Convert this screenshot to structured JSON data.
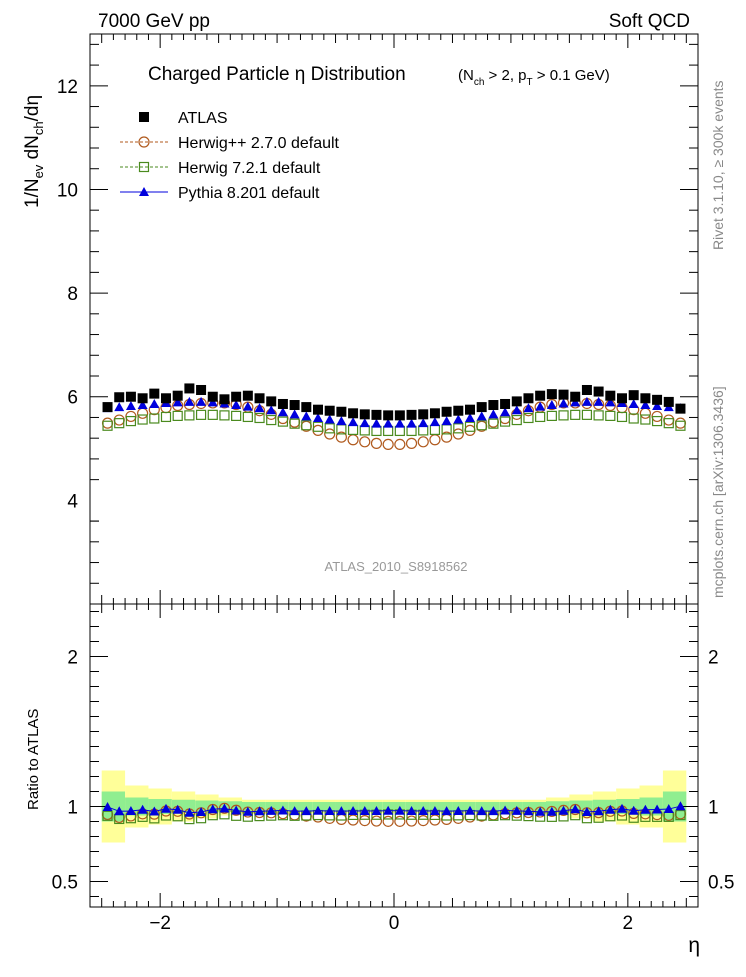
{
  "header": {
    "left": "7000 GeV pp",
    "right": "Soft QCD"
  },
  "side_labels": {
    "rivet": "Rivet 3.1.10, ≥ 300k events",
    "mcplots": "mcplots.cern.ch [arXiv:1306.3436]"
  },
  "chart_data": [
    {
      "type": "scatter",
      "title": "Charged Particle  η Distribution",
      "title_cuts": "(N_ch > 2, p_T > 0.1 GeV)",
      "ylabel": "1/N_ev dN_ch/dη",
      "xlabel": "η",
      "watermark": "ATLAS_2010_S8918562",
      "xlim": [
        -2.6,
        2.6
      ],
      "ylim": [
        2.0,
        13.0
      ],
      "xticks": [
        -2,
        0,
        2
      ],
      "yticks": [
        4,
        6,
        8,
        10,
        12
      ],
      "legend_position": "top-left",
      "x": [
        -2.45,
        -2.35,
        -2.25,
        -2.15,
        -2.05,
        -1.95,
        -1.85,
        -1.75,
        -1.65,
        -1.55,
        -1.45,
        -1.35,
        -1.25,
        -1.15,
        -1.05,
        -0.95,
        -0.85,
        -0.75,
        -0.65,
        -0.55,
        -0.45,
        -0.35,
        -0.25,
        -0.15,
        -0.05,
        0.05,
        0.15,
        0.25,
        0.35,
        0.45,
        0.55,
        0.65,
        0.75,
        0.85,
        0.95,
        1.05,
        1.15,
        1.25,
        1.35,
        1.45,
        1.55,
        1.65,
        1.75,
        1.85,
        1.95,
        2.05,
        2.15,
        2.25,
        2.35,
        2.45
      ],
      "series": [
        {
          "name": "ATLAS",
          "marker": "filled-square",
          "color": "#000000",
          "values": [
            5.8,
            5.99,
            6.0,
            5.97,
            6.06,
            5.97,
            6.02,
            6.16,
            6.13,
            6.0,
            5.95,
            6.0,
            6.02,
            5.97,
            5.91,
            5.86,
            5.84,
            5.8,
            5.75,
            5.73,
            5.71,
            5.68,
            5.66,
            5.65,
            5.64,
            5.64,
            5.65,
            5.66,
            5.68,
            5.71,
            5.73,
            5.75,
            5.8,
            5.84,
            5.86,
            5.91,
            5.97,
            6.02,
            6.05,
            6.04,
            6.0,
            6.13,
            6.1,
            6.02,
            5.97,
            6.03,
            5.97,
            5.94,
            5.9,
            5.77
          ]
        },
        {
          "name": "Herwig++ 2.7.0 default",
          "marker": "open-circle",
          "color": "#b05a1e",
          "values": [
            5.49,
            5.55,
            5.62,
            5.68,
            5.75,
            5.79,
            5.83,
            5.85,
            5.87,
            5.88,
            5.88,
            5.85,
            5.8,
            5.73,
            5.66,
            5.58,
            5.51,
            5.43,
            5.35,
            5.28,
            5.22,
            5.17,
            5.13,
            5.1,
            5.08,
            5.08,
            5.1,
            5.13,
            5.17,
            5.22,
            5.28,
            5.35,
            5.43,
            5.51,
            5.58,
            5.66,
            5.73,
            5.8,
            5.85,
            5.88,
            5.88,
            5.87,
            5.85,
            5.83,
            5.79,
            5.75,
            5.68,
            5.62,
            5.55,
            5.49
          ]
        },
        {
          "name": "Herwig 7.2.1 default",
          "marker": "open-square",
          "color": "#4a8a1e",
          "values": [
            5.44,
            5.49,
            5.53,
            5.56,
            5.58,
            5.61,
            5.63,
            5.64,
            5.65,
            5.65,
            5.64,
            5.63,
            5.61,
            5.59,
            5.55,
            5.52,
            5.48,
            5.45,
            5.42,
            5.39,
            5.37,
            5.36,
            5.35,
            5.34,
            5.34,
            5.34,
            5.34,
            5.35,
            5.36,
            5.37,
            5.39,
            5.42,
            5.45,
            5.48,
            5.52,
            5.55,
            5.59,
            5.61,
            5.63,
            5.64,
            5.65,
            5.65,
            5.64,
            5.63,
            5.61,
            5.58,
            5.56,
            5.53,
            5.49,
            5.44
          ]
        },
        {
          "name": "Pythia 8.201 default",
          "marker": "filled-triangle",
          "color": "#0000dd",
          "values": [
            5.78,
            5.8,
            5.82,
            5.84,
            5.86,
            5.88,
            5.89,
            5.9,
            5.9,
            5.89,
            5.87,
            5.84,
            5.81,
            5.78,
            5.74,
            5.7,
            5.66,
            5.62,
            5.59,
            5.56,
            5.53,
            5.51,
            5.49,
            5.48,
            5.48,
            5.48,
            5.48,
            5.49,
            5.51,
            5.53,
            5.56,
            5.59,
            5.62,
            5.66,
            5.7,
            5.74,
            5.78,
            5.81,
            5.84,
            5.87,
            5.89,
            5.9,
            5.9,
            5.89,
            5.88,
            5.86,
            5.84,
            5.82,
            5.8,
            5.78
          ]
        }
      ]
    },
    {
      "type": "scatter",
      "ylabel": "Ratio to ATLAS",
      "xlabel": "η",
      "xlim": [
        -2.6,
        2.6
      ],
      "ylim": [
        0.33,
        2.35
      ],
      "xticks": [
        -2,
        0,
        2
      ],
      "yticks": [
        0.5,
        1,
        2
      ],
      "ytick_labels": [
        "0.5",
        "1",
        "2"
      ],
      "uncertainty_bands": {
        "stat_color": "#90ee90",
        "total_color": "#ffff99",
        "x_edges": [
          -2.5,
          -2.3,
          -2.1,
          -1.9,
          -1.7,
          -1.5,
          -1.3,
          -1.1,
          -0.9,
          -0.7,
          -0.5,
          -0.3,
          -0.1,
          0.1,
          0.3,
          0.5,
          0.7,
          0.9,
          1.1,
          1.3,
          1.5,
          1.7,
          1.9,
          2.1,
          2.3,
          2.5
        ],
        "stat_half_width": [
          0.1,
          0.06,
          0.05,
          0.045,
          0.04,
          0.035,
          0.03,
          0.03,
          0.03,
          0.03,
          0.03,
          0.03,
          0.03,
          0.03,
          0.03,
          0.03,
          0.03,
          0.03,
          0.03,
          0.035,
          0.04,
          0.045,
          0.05,
          0.06,
          0.1
        ],
        "total_half_width": [
          0.24,
          0.14,
          0.12,
          0.1,
          0.08,
          0.06,
          0.045,
          0.045,
          0.045,
          0.045,
          0.045,
          0.045,
          0.045,
          0.045,
          0.045,
          0.045,
          0.045,
          0.045,
          0.045,
          0.06,
          0.08,
          0.1,
          0.12,
          0.14,
          0.24
        ]
      },
      "series": [
        {
          "name": "Herwig++ 2.7.0 default",
          "values": [
            0.947,
            0.927,
            0.937,
            0.951,
            0.949,
            0.97,
            0.968,
            0.95,
            0.958,
            0.98,
            0.988,
            0.975,
            0.963,
            0.96,
            0.958,
            0.952,
            0.944,
            0.936,
            0.93,
            0.921,
            0.914,
            0.91,
            0.906,
            0.903,
            0.901,
            0.901,
            0.903,
            0.906,
            0.91,
            0.914,
            0.921,
            0.93,
            0.936,
            0.944,
            0.952,
            0.958,
            0.96,
            0.963,
            0.967,
            0.974,
            0.98,
            0.958,
            0.959,
            0.968,
            0.97,
            0.954,
            0.951,
            0.946,
            0.941,
            0.951
          ]
        },
        {
          "name": "Herwig 7.2.1 default",
          "values": [
            0.938,
            0.917,
            0.922,
            0.931,
            0.921,
            0.94,
            0.935,
            0.916,
            0.922,
            0.942,
            0.948,
            0.938,
            0.932,
            0.936,
            0.939,
            0.942,
            0.938,
            0.94,
            0.943,
            0.941,
            0.94,
            0.944,
            0.945,
            0.945,
            0.947,
            0.947,
            0.945,
            0.945,
            0.944,
            0.94,
            0.941,
            0.943,
            0.94,
            0.938,
            0.942,
            0.939,
            0.936,
            0.932,
            0.931,
            0.934,
            0.942,
            0.922,
            0.925,
            0.935,
            0.94,
            0.925,
            0.931,
            0.931,
            0.931,
            0.943
          ]
        },
        {
          "name": "Pythia 8.201 default",
          "values": [
            0.997,
            0.968,
            0.97,
            0.978,
            0.967,
            0.985,
            0.978,
            0.958,
            0.963,
            0.982,
            0.987,
            0.973,
            0.965,
            0.968,
            0.971,
            0.973,
            0.969,
            0.969,
            0.972,
            0.97,
            0.969,
            0.97,
            0.97,
            0.97,
            0.972,
            0.972,
            0.97,
            0.97,
            0.97,
            0.969,
            0.97,
            0.972,
            0.969,
            0.969,
            0.973,
            0.971,
            0.968,
            0.965,
            0.965,
            0.972,
            0.982,
            0.963,
            0.968,
            0.978,
            0.985,
            0.972,
            0.978,
            0.98,
            0.983,
            1.002
          ]
        }
      ]
    }
  ]
}
